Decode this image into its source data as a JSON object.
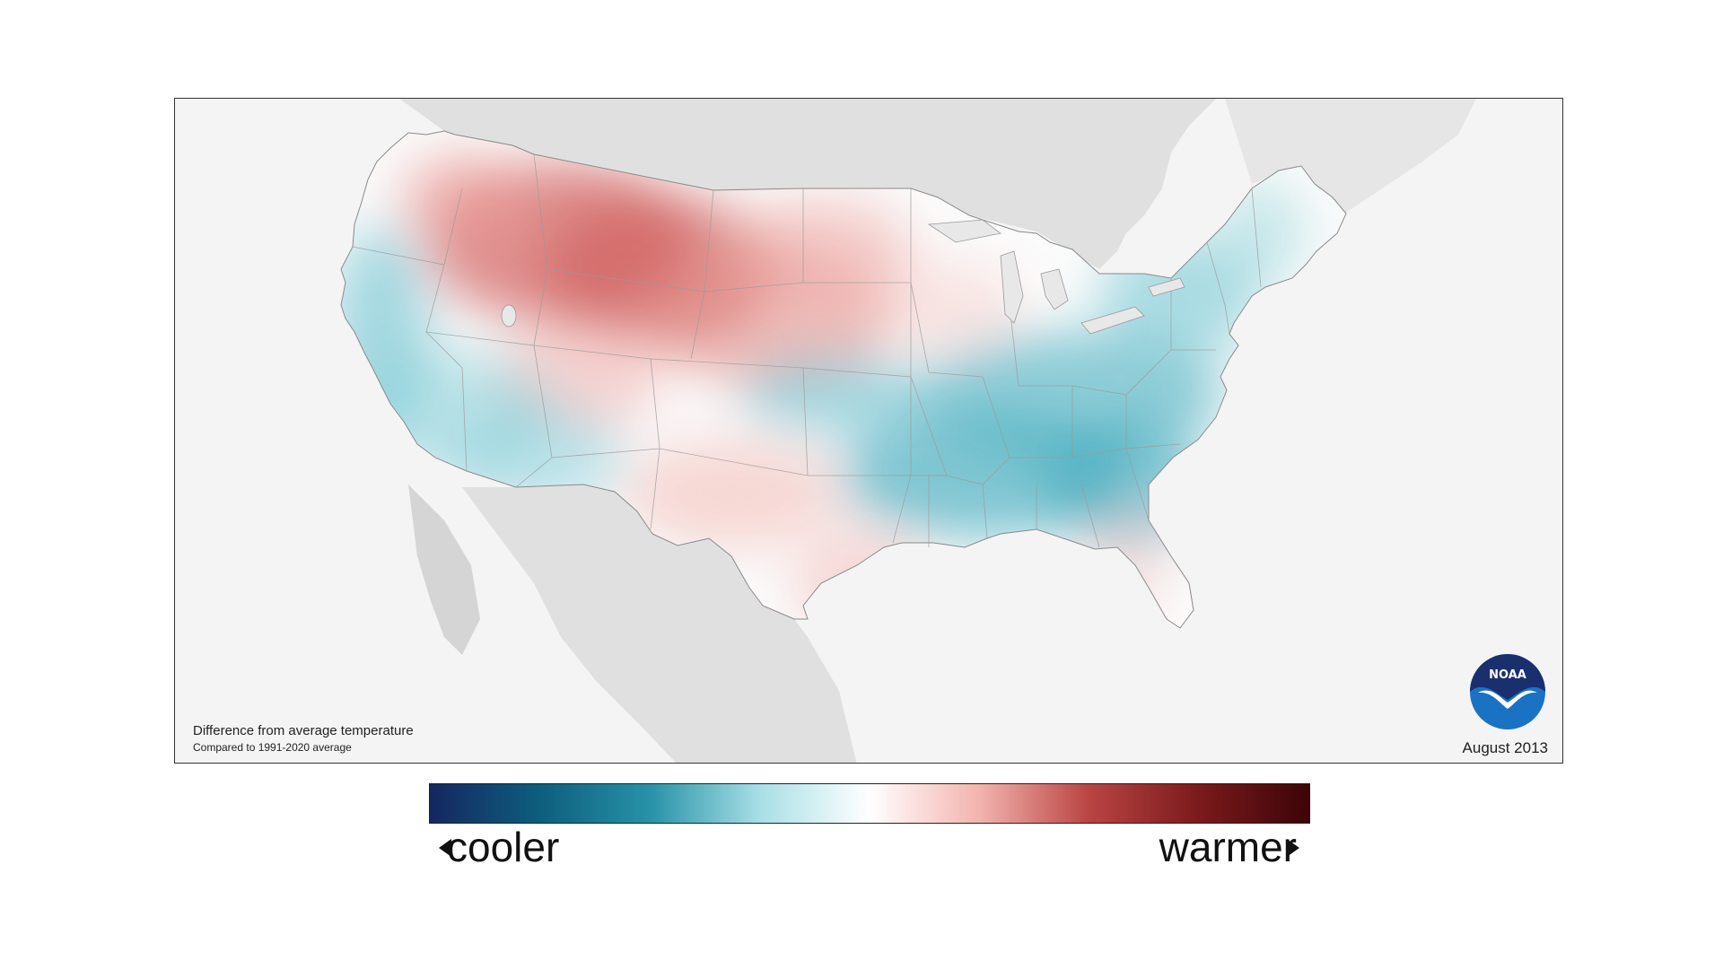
{
  "map": {
    "caption_title": "Difference from average temperature",
    "caption_subtitle": "Compared to 1991-2020 average",
    "date": "August 2013",
    "logo_text": "NOAA",
    "colors": {
      "land_background": "#e0e0e0",
      "map_background": "#f4f4f4",
      "neutral": "#ffffff",
      "cool": "#3aa7bb",
      "warm": "#d9706c"
    },
    "anomaly_regions": [
      {
        "name": "northern-rockies-plains",
        "sign": "warmer",
        "intensity": 0.55
      },
      {
        "name": "pacific-northwest",
        "sign": "warmer",
        "intensity": 0.25
      },
      {
        "name": "california-great-basin",
        "sign": "cooler",
        "intensity": 0.35
      },
      {
        "name": "southwest",
        "sign": "cooler",
        "intensity": 0.3
      },
      {
        "name": "texas-southern-plains",
        "sign": "warmer",
        "intensity": 0.25
      },
      {
        "name": "central-plains",
        "sign": "cooler",
        "intensity": 0.4
      },
      {
        "name": "southeast",
        "sign": "cooler",
        "intensity": 0.55
      },
      {
        "name": "ohio-valley-mid-atlantic",
        "sign": "cooler",
        "intensity": 0.45
      },
      {
        "name": "northeast",
        "sign": "cooler",
        "intensity": 0.35
      },
      {
        "name": "upper-midwest",
        "sign": "warmer",
        "intensity": 0.2
      },
      {
        "name": "florida",
        "sign": "warmer",
        "intensity": 0.15
      }
    ]
  },
  "legend": {
    "cooler_label": "cooler",
    "warmer_label": "warmer",
    "gradient": [
      "#152760",
      "#0d5e7d",
      "#2792a8",
      "#a8dfe6",
      "#ffffff",
      "#f3b3ae",
      "#b94442",
      "#7a1a1c",
      "#3d0408"
    ]
  }
}
